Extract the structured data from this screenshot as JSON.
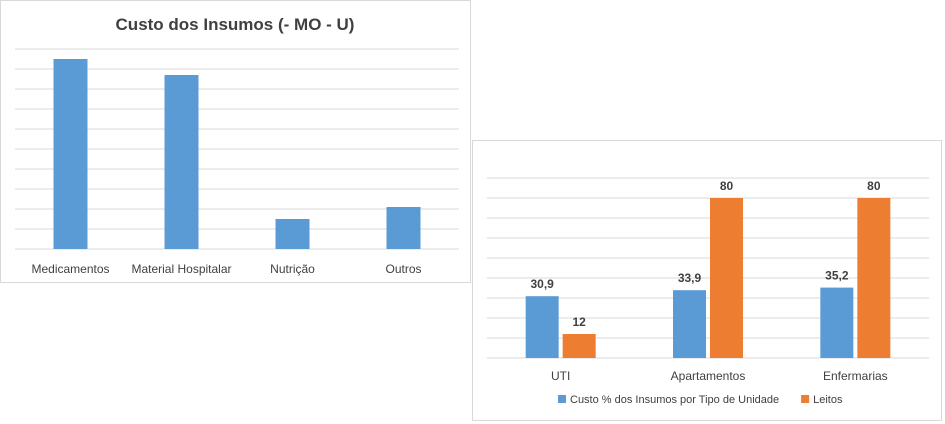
{
  "chart_data": [
    {
      "type": "bar",
      "title": "Custo dos Insumos (- MO - U)",
      "categories": [
        "Medicamentos",
        "Material Hospitalar",
        "Nutrição",
        "Outros"
      ],
      "values": [
        47.5,
        43.5,
        7.5,
        10.5
      ],
      "ylim": [
        0,
        50
      ],
      "grid": true,
      "data_labels": false,
      "colors": {
        "bar": "#5b9bd5",
        "grid": "#d9d9d9"
      }
    },
    {
      "type": "bar",
      "title": "",
      "categories": [
        "UTI",
        "Apartamentos",
        "Enfermarias"
      ],
      "series": [
        {
          "name": "Custo % dos Insumos por Tipo de Unidade",
          "values": [
            30.9,
            33.9,
            35.2
          ],
          "labels": [
            "30,9",
            "33,9",
            "35,2"
          ],
          "color": "#5b9bd5"
        },
        {
          "name": "Leitos",
          "values": [
            12,
            80,
            80
          ],
          "labels": [
            "12",
            "80",
            "80"
          ],
          "color": "#ed7d31"
        }
      ],
      "ylim": [
        0,
        90
      ],
      "grid": true,
      "legend": "bottom"
    }
  ]
}
